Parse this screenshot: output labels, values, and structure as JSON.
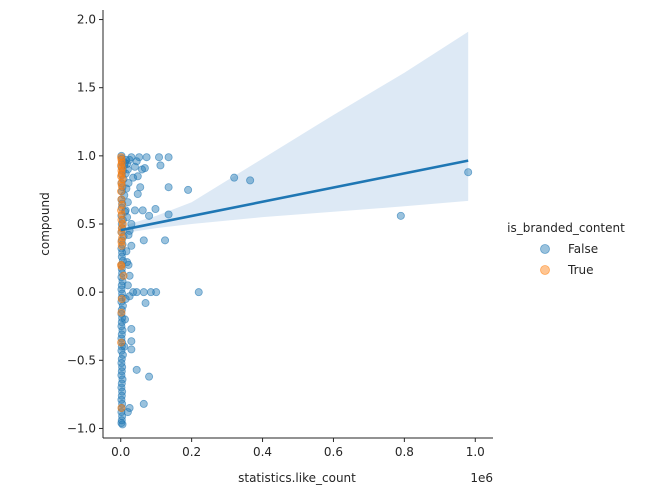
{
  "chart_data": {
    "type": "scatter",
    "xlabel": "statistics.like_count",
    "ylabel": "compound",
    "x_offset_text": "1e6",
    "xlim": [
      -0.05,
      1.05
    ],
    "ylim": [
      -1.07,
      2.07
    ],
    "xticks": [
      0.0,
      0.2,
      0.4,
      0.6,
      0.8,
      1.0
    ],
    "xtick_labels": [
      "0.0",
      "0.2",
      "0.4",
      "0.6",
      "0.8",
      "1.0"
    ],
    "yticks": [
      -1.0,
      -0.5,
      0.0,
      0.5,
      1.0,
      1.5,
      2.0
    ],
    "ytick_labels": [
      "−1.0",
      "−0.5",
      "0.0",
      "0.5",
      "1.0",
      "1.5",
      "2.0"
    ],
    "grid": false,
    "legend": {
      "title": "is_branded_content",
      "placement": "right",
      "entries": [
        "False",
        "True"
      ]
    },
    "colors": {
      "False": "#1f77b4",
      "True": "#ff7f0e",
      "band": "#c6dbef"
    },
    "series": [
      {
        "name": "False",
        "points": [
          [
            0.32,
            0.84
          ],
          [
            0.365,
            0.82
          ],
          [
            0.19,
            0.75
          ],
          [
            0.135,
            0.99
          ],
          [
            0.108,
            0.99
          ],
          [
            0.112,
            0.93
          ],
          [
            0.073,
            0.99
          ],
          [
            0.068,
            0.91
          ],
          [
            0.06,
            0.9
          ],
          [
            0.135,
            0.77
          ],
          [
            0.135,
            0.57
          ],
          [
            0.08,
            0.56
          ],
          [
            0.098,
            0.61
          ],
          [
            0.062,
            0.6
          ],
          [
            0.125,
            0.38
          ],
          [
            0.065,
            0.38
          ],
          [
            0.055,
            0.77
          ],
          [
            0.048,
            0.85
          ],
          [
            0.052,
            0.99
          ],
          [
            0.045,
            0.96
          ],
          [
            0.03,
            0.99
          ],
          [
            0.025,
            0.97
          ],
          [
            0.04,
            0.92
          ],
          [
            0.035,
            0.84
          ],
          [
            0.048,
            0.72
          ],
          [
            0.04,
            0.6
          ],
          [
            0.03,
            0.5
          ],
          [
            0.025,
            0.45
          ],
          [
            0.03,
            0.34
          ],
          [
            0.018,
            0.22
          ],
          [
            0.022,
            0.2
          ],
          [
            0.025,
            0.12
          ],
          [
            0.045,
            0.0
          ],
          [
            0.035,
            0.0
          ],
          [
            0.065,
            0.0
          ],
          [
            0.085,
            0.0
          ],
          [
            0.1,
            0.0
          ],
          [
            0.22,
            0.0
          ],
          [
            0.07,
            -0.08
          ],
          [
            0.025,
            -0.03
          ],
          [
            0.03,
            -0.27
          ],
          [
            0.03,
            -0.36
          ],
          [
            0.03,
            -0.42
          ],
          [
            0.045,
            -0.57
          ],
          [
            0.08,
            -0.62
          ],
          [
            0.065,
            -0.82
          ],
          [
            0.025,
            -0.85
          ],
          [
            0.02,
            -0.88
          ],
          [
            0.79,
            0.56
          ],
          [
            0.98,
            0.88
          ],
          [
            0.002,
            1.0
          ],
          [
            0.003,
            0.98
          ],
          [
            0.004,
            0.95
          ],
          [
            0.002,
            0.92
          ],
          [
            0.006,
            0.89
          ],
          [
            0.003,
            0.86
          ],
          [
            0.008,
            0.83
          ],
          [
            0.002,
            0.8
          ],
          [
            0.005,
            0.77
          ],
          [
            0.003,
            0.74
          ],
          [
            0.01,
            0.71
          ],
          [
            0.002,
            0.68
          ],
          [
            0.004,
            0.65
          ],
          [
            0.003,
            0.62
          ],
          [
            0.012,
            0.59
          ],
          [
            0.002,
            0.56
          ],
          [
            0.006,
            0.53
          ],
          [
            0.003,
            0.5
          ],
          [
            0.004,
            0.47
          ],
          [
            0.002,
            0.44
          ],
          [
            0.008,
            0.41
          ],
          [
            0.003,
            0.38
          ],
          [
            0.005,
            0.35
          ],
          [
            0.002,
            0.32
          ],
          [
            0.004,
            0.29
          ],
          [
            0.003,
            0.26
          ],
          [
            0.006,
            0.23
          ],
          [
            0.002,
            0.2
          ],
          [
            0.003,
            0.17
          ],
          [
            0.004,
            0.14
          ],
          [
            0.002,
            0.11
          ],
          [
            0.005,
            0.08
          ],
          [
            0.003,
            0.05
          ],
          [
            0.002,
            0.02
          ],
          [
            0.004,
            -0.01
          ],
          [
            0.003,
            -0.04
          ],
          [
            0.002,
            -0.07
          ],
          [
            0.006,
            -0.1
          ],
          [
            0.003,
            -0.13
          ],
          [
            0.002,
            -0.16
          ],
          [
            0.004,
            -0.19
          ],
          [
            0.003,
            -0.22
          ],
          [
            0.002,
            -0.25
          ],
          [
            0.005,
            -0.28
          ],
          [
            0.003,
            -0.31
          ],
          [
            0.002,
            -0.34
          ],
          [
            0.004,
            -0.37
          ],
          [
            0.003,
            -0.4
          ],
          [
            0.002,
            -0.43
          ],
          [
            0.006,
            -0.46
          ],
          [
            0.003,
            -0.49
          ],
          [
            0.002,
            -0.52
          ],
          [
            0.004,
            -0.55
          ],
          [
            0.003,
            -0.58
          ],
          [
            0.002,
            -0.61
          ],
          [
            0.005,
            -0.64
          ],
          [
            0.003,
            -0.67
          ],
          [
            0.002,
            -0.7
          ],
          [
            0.004,
            -0.73
          ],
          [
            0.003,
            -0.76
          ],
          [
            0.002,
            -0.79
          ],
          [
            0.004,
            -0.82
          ],
          [
            0.003,
            -0.85
          ],
          [
            0.002,
            -0.88
          ],
          [
            0.004,
            -0.91
          ],
          [
            0.003,
            -0.94
          ],
          [
            0.002,
            -0.96
          ],
          [
            0.005,
            -0.97
          ],
          [
            0.015,
            0.97
          ],
          [
            0.018,
            0.94
          ],
          [
            0.02,
            0.9
          ],
          [
            0.014,
            0.87
          ],
          [
            0.022,
            0.8
          ],
          [
            0.016,
            0.76
          ],
          [
            0.02,
            0.66
          ],
          [
            0.014,
            0.6
          ],
          [
            0.018,
            0.55
          ],
          [
            0.022,
            0.42
          ],
          [
            0.016,
            0.3
          ],
          [
            0.02,
            0.05
          ],
          [
            0.014,
            -0.05
          ],
          [
            0.012,
            -0.2
          ],
          [
            0.01,
            -0.4
          ],
          [
            0.012,
            0.95
          ],
          [
            0.01,
            0.93
          ]
        ]
      },
      {
        "name": "True",
        "points": [
          [
            0.001,
            0.99
          ],
          [
            0.002,
            0.97
          ],
          [
            0.003,
            0.95
          ],
          [
            0.001,
            0.93
          ],
          [
            0.004,
            0.91
          ],
          [
            0.002,
            0.89
          ],
          [
            0.003,
            0.87
          ],
          [
            0.001,
            0.85
          ],
          [
            0.005,
            0.83
          ],
          [
            0.002,
            0.8
          ],
          [
            0.003,
            0.78
          ],
          [
            0.001,
            0.74
          ],
          [
            0.002,
            0.68
          ],
          [
            0.004,
            0.64
          ],
          [
            0.001,
            0.6
          ],
          [
            0.003,
            0.57
          ],
          [
            0.002,
            0.53
          ],
          [
            0.006,
            0.5
          ],
          [
            0.003,
            0.47
          ],
          [
            0.002,
            0.44
          ],
          [
            0.004,
            0.4
          ],
          [
            0.002,
            0.37
          ],
          [
            0.003,
            0.34
          ],
          [
            0.001,
            0.2
          ],
          [
            0.002,
            0.19
          ],
          [
            0.008,
            0.12
          ],
          [
            0.003,
            -0.05
          ],
          [
            0.002,
            -0.15
          ],
          [
            0.001,
            -0.37
          ],
          [
            0.002,
            -0.85
          ]
        ]
      }
    ],
    "regression": {
      "series": "False",
      "line": [
        [
          0.0,
          0.455
        ],
        [
          0.98,
          0.965
        ]
      ],
      "ci_band": {
        "x": [
          0.0,
          0.1,
          0.2,
          0.4,
          0.6,
          0.8,
          0.98
        ],
        "lower": [
          0.43,
          0.47,
          0.5,
          0.55,
          0.59,
          0.63,
          0.67
        ],
        "upper": [
          0.48,
          0.56,
          0.66,
          0.98,
          1.3,
          1.61,
          1.91
        ]
      }
    }
  }
}
